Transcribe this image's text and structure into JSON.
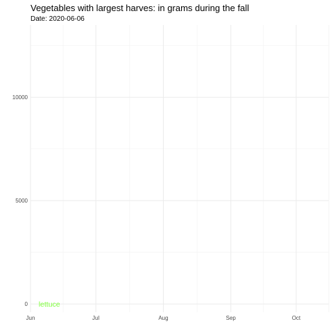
{
  "chart_data": {
    "type": "line",
    "title": "Vegetables with largest harves: in grams during the fall",
    "subtitle": "Date: 2020-06-06",
    "xlabel": "",
    "ylabel": "",
    "x_tick_labels": [
      "Jun",
      "Jul",
      "Aug",
      "Sep",
      "Oct"
    ],
    "x_tick_dates": [
      "2020-06-01",
      "2020-07-01",
      "2020-08-01",
      "2020-09-01",
      "2020-10-01"
    ],
    "xlim": [
      "2020-06-01",
      "2020-10-16"
    ],
    "y_ticks": [
      0,
      5000,
      10000
    ],
    "ylim": [
      -400,
      13500
    ],
    "grid": true,
    "series": [
      {
        "name": "lettuce",
        "color": "#7fff3c",
        "points": [
          {
            "x": "2020-06-06",
            "y": 0
          }
        ]
      }
    ]
  }
}
